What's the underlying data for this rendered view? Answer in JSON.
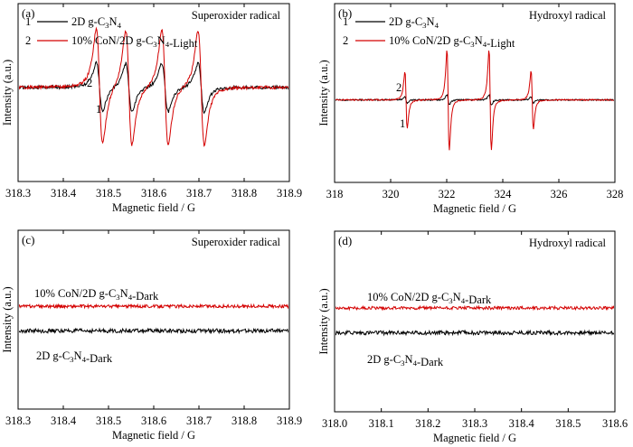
{
  "chart_data": [
    {
      "panel": "(a)",
      "type": "line",
      "title": "Superoxider radical",
      "xlabel": "Magnetic field / G",
      "ylabel": "Intensity (a.u.)",
      "xlim": [
        318.3,
        318.9
      ],
      "xticks": [
        "318.3",
        "318.4",
        "318.5",
        "318.6",
        "318.7",
        "318.8",
        "318.9"
      ],
      "ylim": [
        -1.8,
        1.6
      ],
      "legend_loc": "top-left",
      "series": [
        {
          "name": "2D g-C3N4",
          "legend_num": "1",
          "color": "#000000",
          "curve_label": "1",
          "baseline": 0,
          "noise": 0.03,
          "peaks": [
            [
              318.48,
              0.55,
              0.012
            ],
            [
              318.545,
              0.55,
              0.012
            ],
            [
              318.625,
              0.55,
              0.012
            ],
            [
              318.705,
              0.55,
              0.012
            ]
          ]
        },
        {
          "name": "10% CoN/2D g-C3N4-Light",
          "legend_num": "2",
          "color": "#d40000",
          "curve_label": "2",
          "baseline": 0,
          "noise": 0.03,
          "peaks": [
            [
              318.48,
              1.3,
              0.012
            ],
            [
              318.545,
              1.3,
              0.012
            ],
            [
              318.625,
              1.3,
              0.012
            ],
            [
              318.705,
              1.3,
              0.012
            ]
          ]
        }
      ]
    },
    {
      "panel": "(b)",
      "type": "line",
      "title": "Hydroxyl radical",
      "xlabel": "Magnetic field / G",
      "ylabel": "Intensity (a.u.)",
      "xlim": [
        318,
        328
      ],
      "xticks": [
        "318",
        "320",
        "322",
        "324",
        "326",
        "328"
      ],
      "ylim": [
        -2.4,
        2.8
      ],
      "legend_loc": "top-left",
      "series": [
        {
          "name": "2D g-C3N4",
          "legend_num": "1",
          "color": "#000000",
          "curve_label": "1",
          "baseline": 0,
          "noise": 0.02,
          "peaks": [
            [
              320.55,
              0.12,
              0.07
            ],
            [
              322.05,
              0.18,
              0.07
            ],
            [
              323.55,
              0.18,
              0.07
            ],
            [
              325.05,
              0.12,
              0.07
            ]
          ]
        },
        {
          "name": "10% CoN/2D g-C3N4-Light",
          "legend_num": "2",
          "color": "#d40000",
          "curve_label": "2",
          "baseline": 0,
          "noise": 0.02,
          "peaks": [
            [
              320.55,
              1.0,
              0.07
            ],
            [
              322.05,
              1.75,
              0.07
            ],
            [
              323.55,
              1.75,
              0.07
            ],
            [
              325.05,
              1.0,
              0.07
            ]
          ]
        }
      ]
    },
    {
      "panel": "(c)",
      "type": "line",
      "title": "Superoxider radical",
      "xlabel": "Magnetic field / G",
      "ylabel": "Intensity (a.u.)",
      "xlim": [
        318.3,
        318.9
      ],
      "xticks": [
        "318.3",
        "318.4",
        "318.5",
        "318.6",
        "318.7",
        "318.8",
        "318.9"
      ],
      "ylim": [
        -2,
        2
      ],
      "series": [
        {
          "name": "10% CoN/2D g-C3N4-Dark",
          "color": "#d40000",
          "baseline": 0.3,
          "noise": 0.035,
          "peaks": []
        },
        {
          "name": "2D g-C3N4-Dark",
          "color": "#000000",
          "baseline": -0.25,
          "noise": 0.045,
          "peaks": []
        }
      ]
    },
    {
      "panel": "(d)",
      "type": "line",
      "title": "Hydroxyl radical",
      "xlabel": "Magnetic field / G",
      "ylabel": "Intensity (a.u.)",
      "xlim": [
        318.0,
        318.6
      ],
      "xticks": [
        "318.0",
        "318.1",
        "318.2",
        "318.3",
        "318.4",
        "318.5",
        "318.6"
      ],
      "ylim": [
        -2,
        2
      ],
      "series": [
        {
          "name": "10% CoN/2D g-C3N4-Dark",
          "color": "#d40000",
          "baseline": 0.3,
          "noise": 0.035,
          "peaks": []
        },
        {
          "name": "2D g-C3N4-Dark",
          "color": "#000000",
          "baseline": -0.25,
          "noise": 0.045,
          "peaks": []
        }
      ]
    }
  ]
}
